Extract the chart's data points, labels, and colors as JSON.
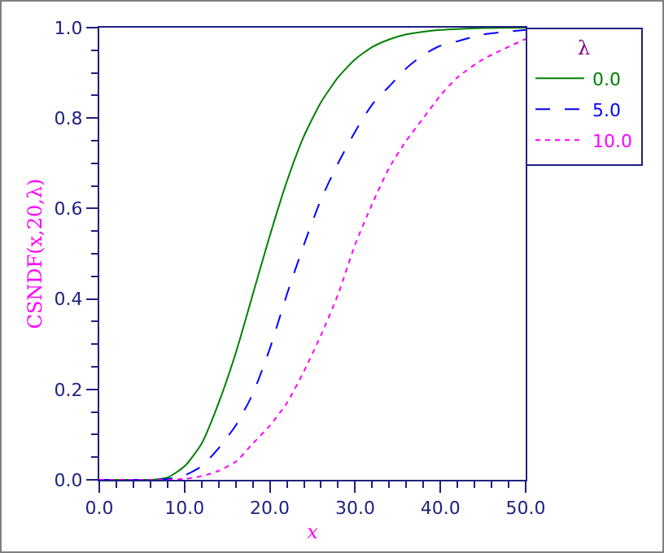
{
  "chart_data": {
    "type": "line",
    "xlabel": "x",
    "ylabel": "CSNDF(x,20,λ)",
    "legend_title": "λ",
    "legend": "top right",
    "grid": false,
    "marker": "none",
    "x": [
      0,
      2,
      4,
      6,
      8,
      10,
      12,
      14,
      16,
      18,
      20,
      22,
      24,
      26,
      28,
      30,
      32,
      34,
      36,
      38,
      40,
      42,
      45,
      50
    ],
    "xlim": [
      0,
      50
    ],
    "xticks": [
      {
        "value": 0,
        "label": "0.0"
      },
      {
        "value": 10,
        "label": "10.0"
      },
      {
        "value": 20,
        "label": "20.0"
      },
      {
        "value": 30,
        "label": "30.0"
      },
      {
        "value": 40,
        "label": "40.0"
      },
      {
        "value": 50,
        "label": "50.0"
      }
    ],
    "ylim": [
      0,
      1
    ],
    "yticks": [
      {
        "value": 0,
        "label": "0.0"
      },
      {
        "value": 0.2,
        "label": "0.2"
      },
      {
        "value": 0.4,
        "label": "0.4"
      },
      {
        "value": 0.6,
        "label": "0.6"
      },
      {
        "value": 0.8,
        "label": "0.8"
      },
      {
        "value": 1,
        "label": "1.0"
      }
    ],
    "series": [
      {
        "name": "0.0",
        "color": "#008000",
        "line_style": "solid",
        "values": [
          0,
          0,
          0,
          0,
          0.005,
          0.03,
          0.08,
          0.17,
          0.28,
          0.41,
          0.54,
          0.66,
          0.76,
          0.835,
          0.89,
          0.93,
          0.957,
          0.974,
          0.985,
          0.991,
          0.995,
          0.997,
          0.999,
          1
        ]
      },
      {
        "name": "5.0",
        "color": "#0000ff",
        "line_style": "dashed",
        "values": [
          0,
          0,
          0,
          0,
          0.002,
          0.01,
          0.03,
          0.07,
          0.12,
          0.19,
          0.29,
          0.41,
          0.52,
          0.62,
          0.7,
          0.77,
          0.83,
          0.87,
          0.91,
          0.94,
          0.96,
          0.97,
          0.985,
          0.995
        ]
      },
      {
        "name": "10.0",
        "color": "#ff00ff",
        "line_style": "dotted",
        "values": [
          0,
          0,
          0,
          0,
          0,
          0.002,
          0.008,
          0.02,
          0.04,
          0.08,
          0.12,
          0.17,
          0.24,
          0.32,
          0.41,
          0.52,
          0.61,
          0.69,
          0.75,
          0.8,
          0.85,
          0.89,
          0.93,
          0.975
        ]
      }
    ]
  }
}
